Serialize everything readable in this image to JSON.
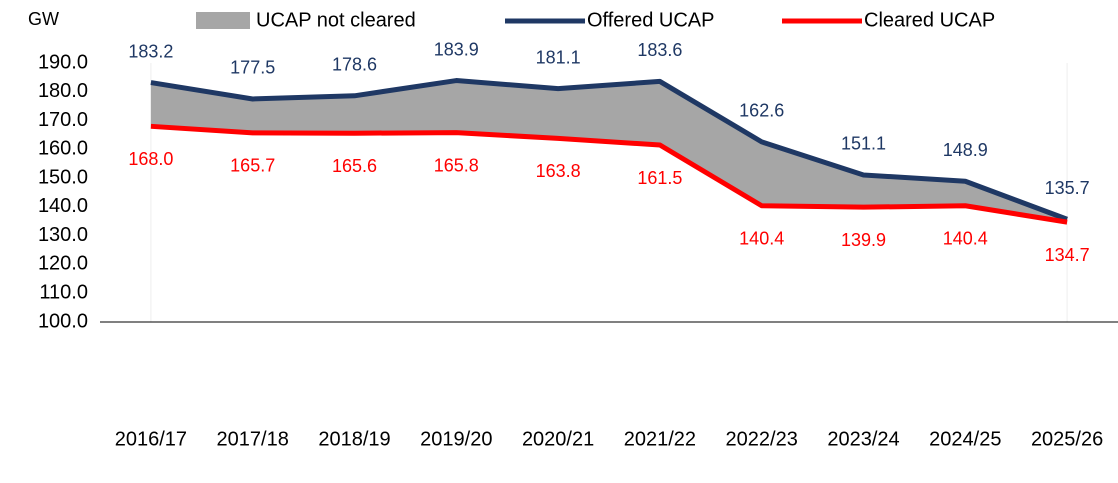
{
  "chart_data": {
    "type": "line",
    "y_unit": "GW",
    "categories": [
      "2016/17",
      "2017/18",
      "2018/19",
      "2019/20",
      "2020/21",
      "2021/22",
      "2022/23",
      "2023/24",
      "2024/25",
      "2025/26"
    ],
    "fill_between": {
      "name": "UCAP not cleared",
      "color": "#a6a6a6"
    },
    "series": [
      {
        "name": "Offered UCAP",
        "color": "#1f3864",
        "values": [
          183.2,
          177.5,
          178.6,
          183.9,
          181.1,
          183.6,
          162.6,
          151.1,
          148.9,
          135.7
        ],
        "value_labels": [
          "183.2",
          "177.5",
          "178.6",
          "183.9",
          "181.1",
          "183.6",
          "162.6",
          "151.1",
          "148.9",
          "135.7"
        ]
      },
      {
        "name": "Cleared UCAP",
        "color": "#ff0000",
        "values": [
          168.0,
          165.7,
          165.6,
          165.8,
          163.8,
          161.5,
          140.4,
          139.9,
          140.4,
          134.7
        ],
        "value_labels": [
          "168.0",
          "165.7",
          "165.6",
          "165.8",
          "163.8",
          "161.5",
          "140.4",
          "139.9",
          "140.4",
          "134.7"
        ]
      }
    ],
    "ylim": [
      100,
      190
    ],
    "yticks": [
      {
        "value": 100,
        "label": "100.0"
      },
      {
        "value": 110,
        "label": "110.0"
      },
      {
        "value": 120,
        "label": "120.0"
      },
      {
        "value": 130,
        "label": "130.0"
      },
      {
        "value": 140,
        "label": "140.0"
      },
      {
        "value": 150,
        "label": "150.0"
      },
      {
        "value": 160,
        "label": "160.0"
      },
      {
        "value": 170,
        "label": "170.0"
      },
      {
        "value": 180,
        "label": "180.0"
      },
      {
        "value": 190,
        "label": "190.0"
      }
    ]
  }
}
